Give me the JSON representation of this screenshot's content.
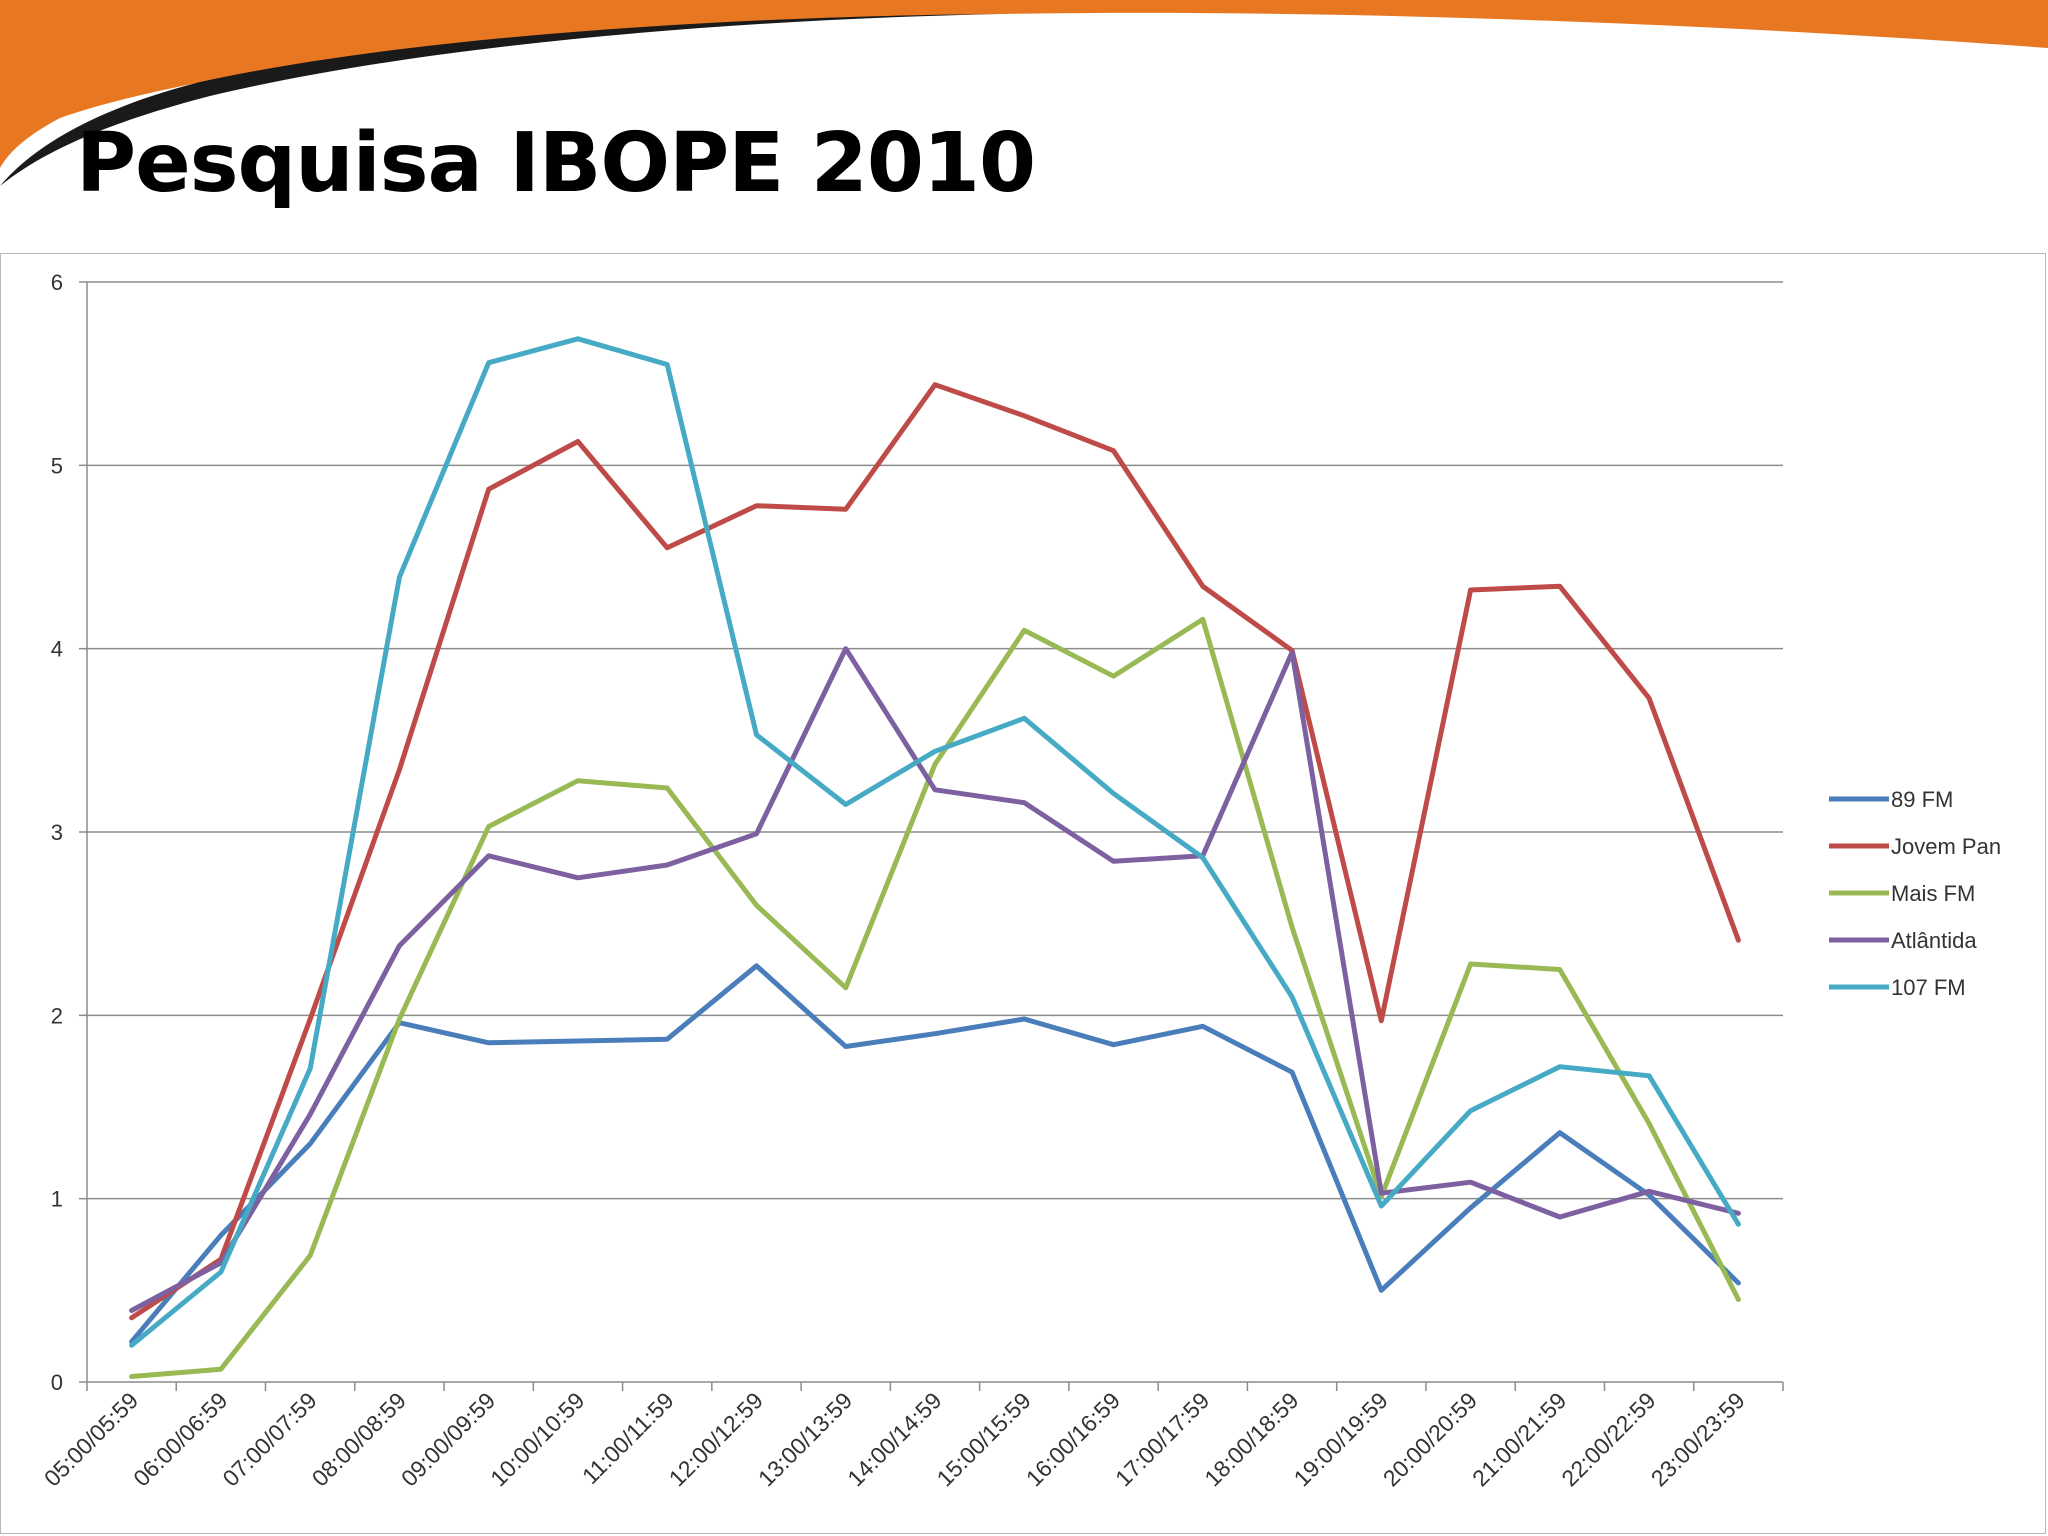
{
  "slide": {
    "title": "Pesquisa IBOPE 2010",
    "accent_color": "#e87722",
    "swoosh_color": "#1a1a1a"
  },
  "chart_data": {
    "type": "line",
    "title": "",
    "xlabel": "",
    "ylabel": "",
    "ylim": [
      0,
      6
    ],
    "yticks": [
      "0",
      "1",
      "2",
      "3",
      "4",
      "5",
      "6"
    ],
    "grid": true,
    "legend_position": "right",
    "categories": [
      "05:00/05:59",
      "06:00/06:59",
      "07:00/07:59",
      "08:00/08:59",
      "09:00/09:59",
      "10:00/10:59",
      "11:00/11:59",
      "12:00/12:59",
      "13:00/13:59",
      "14:00/14:59",
      "15:00/15:59",
      "16:00/16:59",
      "17:00/17:59",
      "18:00/18:59",
      "19:00/19:59",
      "20:00/20:59",
      "21:00/21:59",
      "22:00/22:59",
      "23:00/23:59"
    ],
    "series": [
      {
        "name": "89 FM",
        "color": "#4a7ebb",
        "values": [
          0.22,
          0.8,
          1.3,
          1.96,
          1.85,
          1.86,
          1.87,
          2.27,
          1.83,
          1.9,
          1.98,
          1.84,
          1.94,
          1.69,
          0.5,
          0.95,
          1.36,
          1.02,
          0.54
        ]
      },
      {
        "name": "Jovem Pan",
        "color": "#be4b48",
        "values": [
          0.35,
          0.67,
          1.98,
          3.34,
          4.87,
          5.13,
          4.55,
          4.78,
          4.76,
          5.44,
          5.27,
          5.08,
          4.34,
          3.99,
          1.97,
          4.32,
          4.34,
          3.73,
          2.41
        ]
      },
      {
        "name": "Mais FM",
        "color": "#98b954",
        "values": [
          0.03,
          0.07,
          0.69,
          1.98,
          3.03,
          3.28,
          3.24,
          2.6,
          2.15,
          3.37,
          4.1,
          3.85,
          4.16,
          2.48,
          1.01,
          2.28,
          2.25,
          1.41,
          0.45
        ]
      },
      {
        "name": "Atlântida",
        "color": "#7d60a0",
        "values": [
          0.39,
          0.65,
          1.46,
          2.38,
          2.87,
          2.75,
          2.82,
          2.99,
          4.0,
          3.23,
          3.16,
          2.84,
          2.87,
          3.98,
          1.03,
          1.09,
          0.9,
          1.04,
          0.92
        ]
      },
      {
        "name": "107 FM",
        "color": "#46aac5",
        "values": [
          0.2,
          0.6,
          1.71,
          4.39,
          5.56,
          5.69,
          5.55,
          3.53,
          3.15,
          3.44,
          3.62,
          3.21,
          2.86,
          2.1,
          0.96,
          1.48,
          1.72,
          1.67,
          0.86
        ]
      }
    ]
  }
}
